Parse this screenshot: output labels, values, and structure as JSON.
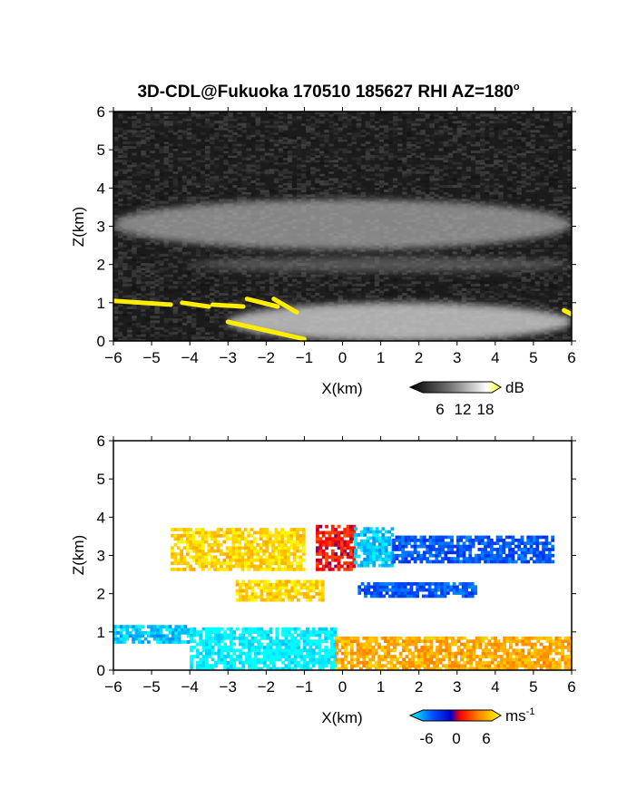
{
  "title": "3D-CDL@Fukuoka 170510 185627 RHI AZ=180",
  "title_degree": "o",
  "chart_data": [
    {
      "type": "heatmap",
      "panel": "top",
      "quantity": "reflectivity (grayscale) with yellow overlay",
      "xlabel": "X(km)",
      "ylabel": "Z(km)",
      "xlim": [
        -6,
        6
      ],
      "ylim": [
        0,
        6
      ],
      "xticks": [
        -6,
        -5,
        -4,
        -3,
        -2,
        -1,
        0,
        1,
        2,
        3,
        4,
        5,
        6
      ],
      "yticks": [
        0,
        1,
        2,
        3,
        4,
        5,
        6
      ],
      "colorbar": {
        "ticks": [
          "6",
          "12",
          "18"
        ],
        "unit": "dB",
        "colors": [
          "#000000",
          "#808080",
          "#ffffff",
          "#ffff00"
        ]
      },
      "features": [
        {
          "name": "bright band",
          "x": [
            -6,
            6
          ],
          "z": [
            2.4,
            3.7
          ]
        },
        {
          "name": "lower layer",
          "x": [
            -4,
            6
          ],
          "z": [
            1.8,
            2.2
          ]
        },
        {
          "name": "near-surface echo",
          "x": [
            -3,
            6
          ],
          "z": [
            0,
            1.0
          ]
        }
      ]
    },
    {
      "type": "heatmap",
      "panel": "bottom",
      "quantity": "radial velocity",
      "xlabel": "X(km)",
      "ylabel": "Z(km)",
      "xlim": [
        -6,
        6
      ],
      "ylim": [
        0,
        6
      ],
      "xticks": [
        -6,
        -5,
        -4,
        -3,
        -2,
        -1,
        0,
        1,
        2,
        3,
        4,
        5,
        6
      ],
      "yticks": [
        0,
        1,
        2,
        3,
        4,
        5,
        6
      ],
      "colorbar": {
        "ticks": [
          "-6",
          "0",
          "6"
        ],
        "unit": "ms",
        "unit_exp": "-1",
        "range": [
          -6,
          6
        ]
      },
      "regions": [
        {
          "x": [
            -4.5,
            -1.0
          ],
          "z": [
            2.6,
            3.7
          ],
          "velocity": 5
        },
        {
          "x": [
            -0.7,
            0.3
          ],
          "z": [
            2.6,
            3.8
          ],
          "velocity": 1
        },
        {
          "x": [
            0.3,
            1.3
          ],
          "z": [
            2.7,
            3.7
          ],
          "velocity": -5
        },
        {
          "x": [
            1.3,
            5.5
          ],
          "z": [
            2.8,
            3.5
          ],
          "velocity": -3
        },
        {
          "x": [
            -2.8,
            -0.5
          ],
          "z": [
            1.8,
            2.3
          ],
          "velocity": 5
        },
        {
          "x": [
            0.4,
            3.5
          ],
          "z": [
            1.9,
            2.3
          ],
          "velocity": -3
        },
        {
          "x": [
            -6,
            -4.0
          ],
          "z": [
            0.7,
            1.1
          ],
          "velocity": -5
        },
        {
          "x": [
            -4.0,
            -0.2
          ],
          "z": [
            0,
            1.1
          ],
          "velocity": -6
        },
        {
          "x": [
            -0.2,
            6
          ],
          "z": [
            0,
            0.8
          ],
          "velocity": 4
        }
      ]
    }
  ]
}
